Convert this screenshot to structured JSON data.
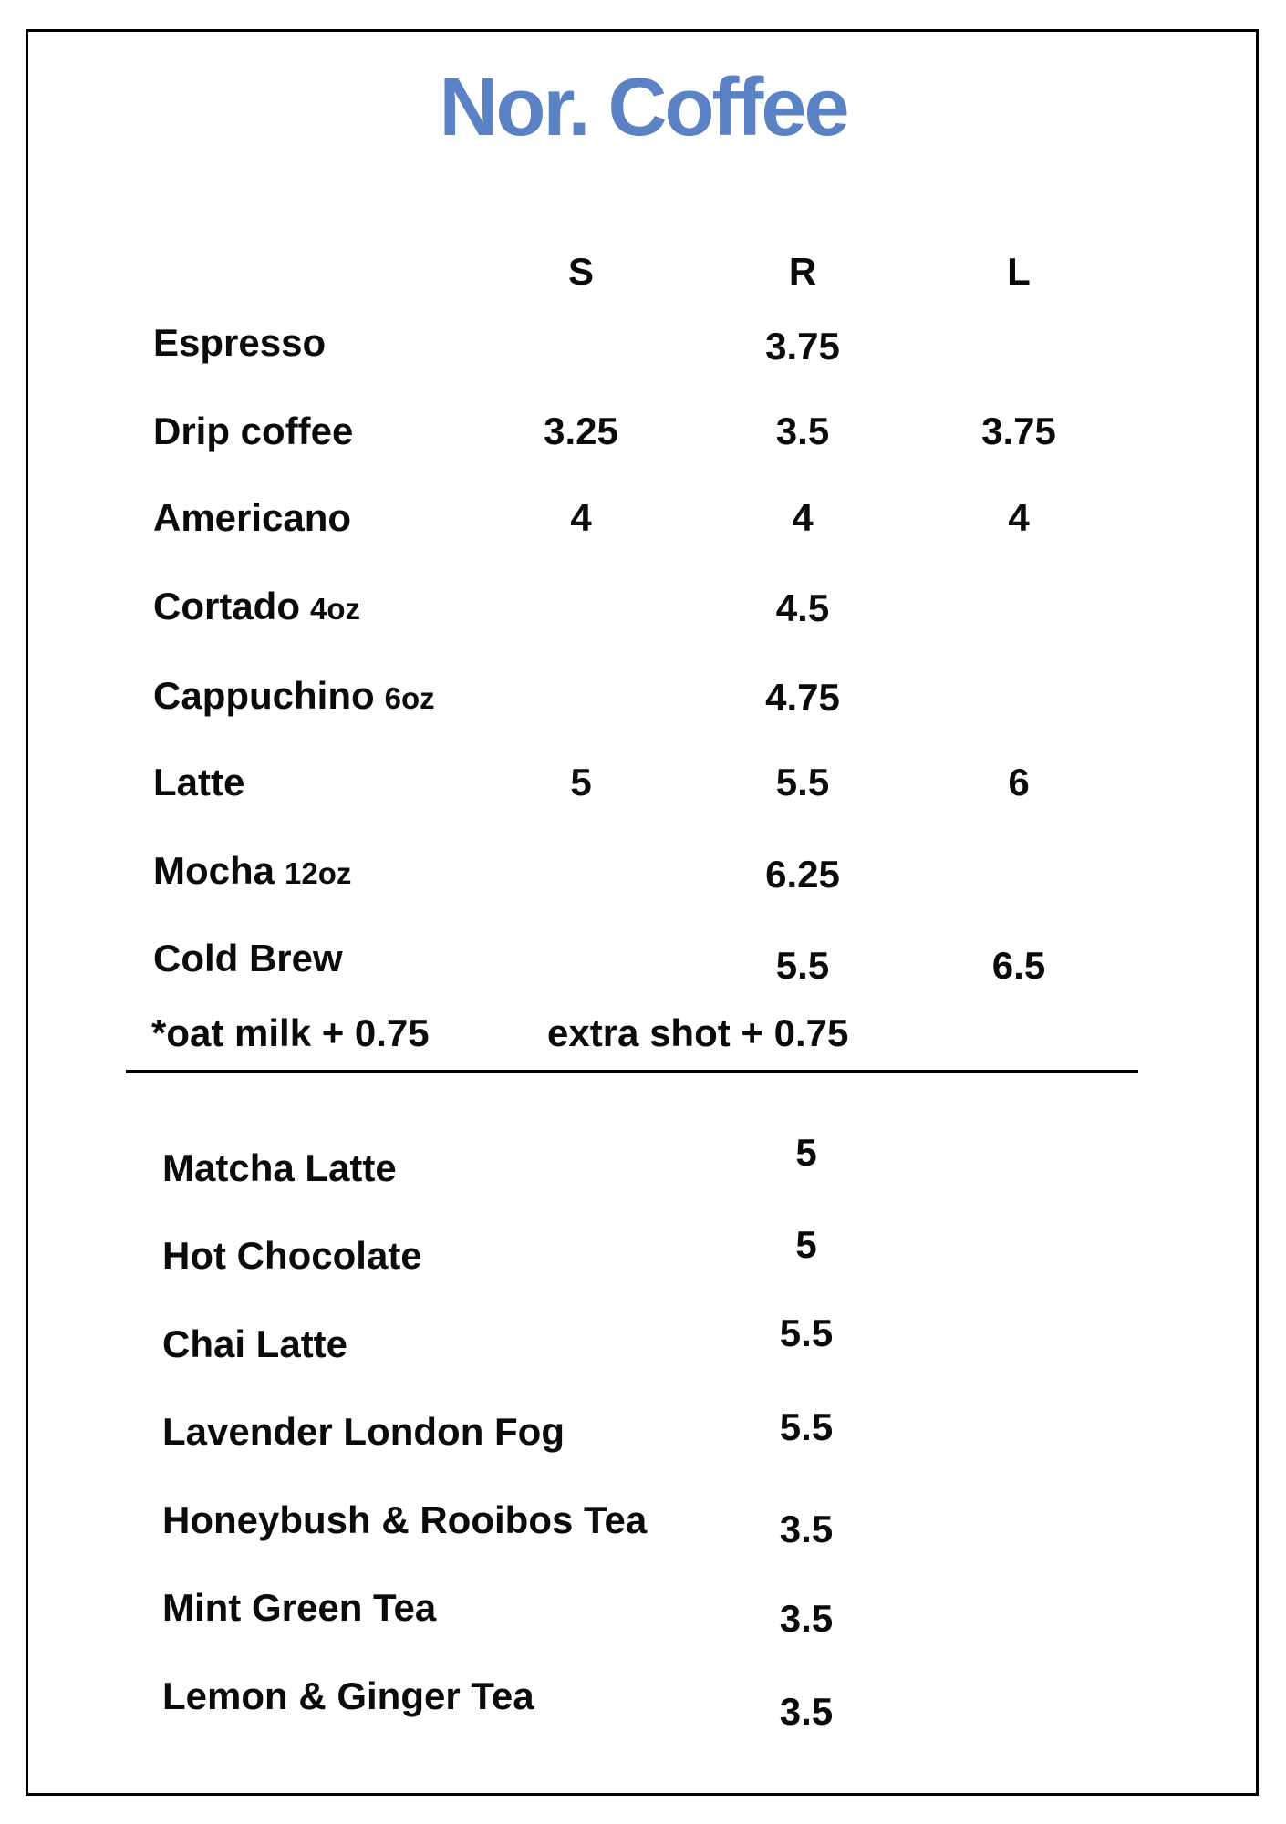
{
  "title": "Nor. Coffee",
  "colors": {
    "title": "#5b82c4",
    "text": "#0b0b0b"
  },
  "size_columns": [
    "S",
    "R",
    "L"
  ],
  "coffee_items": [
    {
      "name": "Espresso",
      "size_note": "",
      "s": "",
      "r": "3.75",
      "l": ""
    },
    {
      "name": "Drip coffee",
      "size_note": "",
      "s": "3.25",
      "r": "3.5",
      "l": "3.75"
    },
    {
      "name": "Americano",
      "size_note": "",
      "s": "4",
      "r": "4",
      "l": "4"
    },
    {
      "name": "Cortado",
      "size_note": "4oz",
      "s": "",
      "r": "4.5",
      "l": ""
    },
    {
      "name": "Cappuchino",
      "size_note": "6oz",
      "s": "",
      "r": "4.75",
      "l": ""
    },
    {
      "name": "Latte",
      "size_note": "",
      "s": "5",
      "r": "5.5",
      "l": "6"
    },
    {
      "name": "Mocha",
      "size_note": "12oz",
      "s": "",
      "r": "6.25",
      "l": ""
    },
    {
      "name": "Cold Brew",
      "size_note": "",
      "s": "",
      "r": "5.5",
      "l": "6.5"
    }
  ],
  "notes": {
    "oat_milk": "*oat milk + 0.75",
    "extra_shot": "extra shot + 0.75"
  },
  "other_items": [
    {
      "name": "Matcha Latte",
      "price": "5"
    },
    {
      "name": "Hot Chocolate",
      "price": "5"
    },
    {
      "name": "Chai Latte",
      "price": "5.5"
    },
    {
      "name": "Lavender London Fog",
      "price": "5.5"
    },
    {
      "name": "Honeybush & Rooibos Tea",
      "price": "3.5"
    },
    {
      "name": "Mint Green Tea",
      "price": "3.5"
    },
    {
      "name": "Lemon & Ginger Tea",
      "price": "3.5"
    }
  ]
}
